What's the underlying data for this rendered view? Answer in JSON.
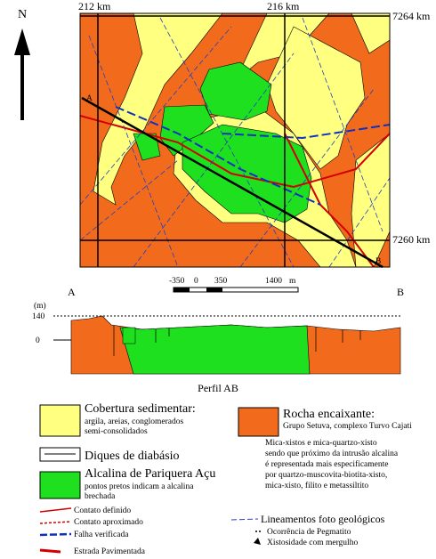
{
  "map": {
    "north": "N",
    "grid_labels": {
      "x_left": "212 km",
      "x_right": "216 km",
      "y_top": "7264 km",
      "y_bottom": "7260 km"
    },
    "section_ends": {
      "start": "A",
      "end": "B"
    }
  },
  "scale": {
    "labels": [
      "-350",
      "0",
      "350",
      "1400",
      "m"
    ]
  },
  "profile": {
    "start": "A",
    "end": "B",
    "unit": "(m)",
    "elev_high": "140",
    "elev_zero": "0",
    "title": "Perfil AB"
  },
  "legend": {
    "sedimentary": {
      "title": "Cobertura sedimentar:",
      "lines": [
        "argila, areias, conglomerados",
        "semi-consolidados"
      ]
    },
    "host_rock": {
      "title": "Rocha encaixante:",
      "subtitle": "Grupo Setuva, complexo Turvo Cajati",
      "lines": [
        "Mica-xistos e mica-quartzo-xisto",
        "sendo que próximo da intrusão alcalina",
        "é representada mais especificamente",
        "por quartzo-muscovita-biotita-xisto,",
        "mica-xisto, filito e metassiltito"
      ]
    },
    "dikes": {
      "title": "Diques de diabásio"
    },
    "alkaline": {
      "title": "Alcalina de Pariquera Açu",
      "lines": [
        "pontos pretos indicam a alcalina",
        "brechada"
      ]
    },
    "contact_defined": "Contato definido",
    "contact_approx": "Contato aproximado",
    "fault": "Falha verificada",
    "road": "Estrada Pavimentada",
    "lineaments": "Lineamentos foto geológicos",
    "pegmatite": "Ocorrência de Pegmatito",
    "schistosity": "Xistosidade com mergulho"
  }
}
